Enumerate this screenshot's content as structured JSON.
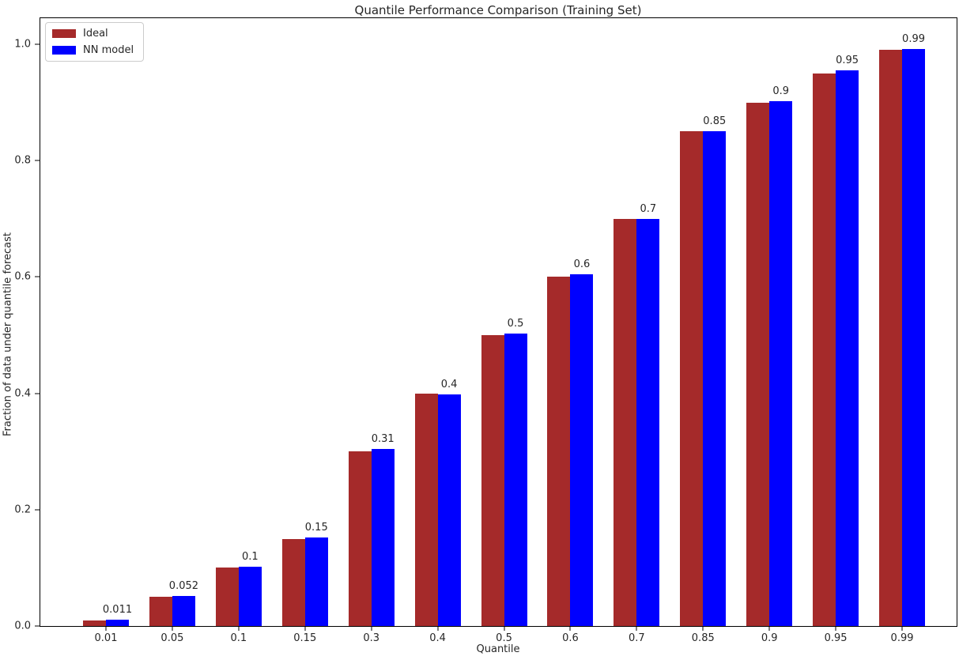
{
  "chart_data": {
    "type": "bar",
    "title": "Quantile Performance Comparison (Training Set)",
    "xlabel": "Quantile",
    "ylabel": "Fraction of data under quantile forecast",
    "categories": [
      "0.01",
      "0.05",
      "0.1",
      "0.15",
      "0.3",
      "0.4",
      "0.5",
      "0.6",
      "0.7",
      "0.85",
      "0.9",
      "0.95",
      "0.99"
    ],
    "series": [
      {
        "name": "Ideal",
        "color": "#a52a2a",
        "values": [
          0.01,
          0.05,
          0.1,
          0.15,
          0.3,
          0.4,
          0.5,
          0.6,
          0.7,
          0.85,
          0.9,
          0.95,
          0.99
        ]
      },
      {
        "name": "NN model",
        "color": "#0000ff",
        "values": [
          0.011,
          0.052,
          0.102,
          0.152,
          0.305,
          0.398,
          0.503,
          0.605,
          0.7,
          0.851,
          0.902,
          0.955,
          0.992
        ]
      }
    ],
    "bar_labels": [
      "0.011",
      "0.052",
      "0.1",
      "0.15",
      "0.31",
      "0.4",
      "0.5",
      "0.6",
      "0.7",
      "0.85",
      "0.9",
      "0.95",
      "0.99"
    ],
    "yticks": [
      "0.0",
      "0.2",
      "0.4",
      "0.6",
      "0.8",
      "1.0"
    ],
    "ylim": [
      0.0,
      1.045
    ],
    "grid": false,
    "legend_position": "upper left"
  }
}
